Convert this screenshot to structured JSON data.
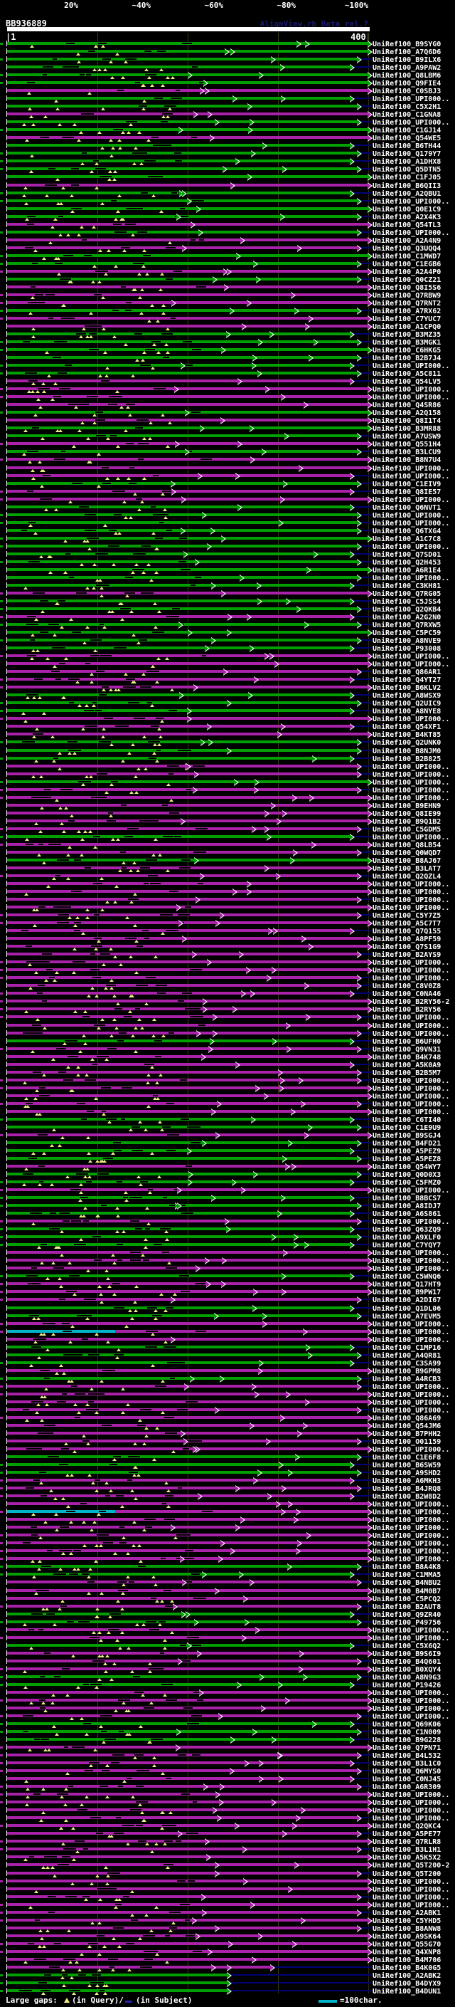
{
  "chart_data": {
    "type": "bar",
    "orientation": "horizontal",
    "title": "BB936889",
    "watermark": "AlignView.rb Beta rel.7",
    "identity_scale": {
      "labels": [
        "20%",
        "~40%",
        "~60%",
        "~80%",
        "~100%"
      ],
      "colors": [
        "#ee1126",
        "#dd7700",
        "#952a9c",
        "#00a000",
        "#00b5c9"
      ]
    },
    "xaxis": {
      "min": 1,
      "max": 400,
      "start_label": "|1",
      "end_label": "400|",
      "gridlines": [
        100,
        200,
        300,
        400
      ],
      "grid_on": true
    },
    "palette": {
      "green": "#00a000",
      "purple": "#aa22aa",
      "cyan": "#00b5c9",
      "connector": "#000077",
      "gap_query": "#eeee88",
      "gridline": "#3b3b08"
    },
    "legend": {
      "prefix": "Large gaps:",
      "query_gap_symbol": "▲",
      "query_gap_label": "(in Query)/",
      "subject_gap_symbol": "-",
      "subject_gap_label": "(in Subject)",
      "scale_label": "=100char."
    },
    "rows": [
      [
        "UniRef100_B9SYG0",
        "g",
        1
      ],
      [
        "UniRef100_A7Q6D6",
        "g",
        1
      ],
      [
        "UniRef100_B9ILX6",
        "g",
        0.97
      ],
      [
        "UniRef100_A9PAW2",
        "g",
        0.95
      ],
      [
        "UniRef100_Q8LBM6",
        "g",
        1
      ],
      [
        "UniRef100_Q9FIE4",
        "g",
        1
      ],
      [
        "UniRef100_C0SBJ3",
        "p",
        1
      ],
      [
        "UniRef100_UPI000..",
        "g",
        0.95
      ],
      [
        "UniRef100_C5X2H1",
        "g",
        0.97
      ],
      [
        "UniRef100_C1GNA8",
        "p",
        1
      ],
      [
        "UniRef100_UPI000..",
        "g",
        0.97
      ],
      [
        "UniRef100_C1GJ14",
        "g",
        1
      ],
      [
        "UniRef100_Q54WE5",
        "p",
        1
      ],
      [
        "UniRef100_B6TH44",
        "g",
        0.95
      ],
      [
        "UniRef100_Q179Y7",
        "g",
        0.97
      ],
      [
        "UniRef100_A1DHX8",
        "g",
        0.95
      ],
      [
        "UniRef100_Q5DTN5",
        "g",
        0.97
      ],
      [
        "UniRef100_C1FJ05",
        "g",
        1
      ],
      [
        "UniRef100_B6QII3",
        "p",
        1
      ],
      [
        "UniRef100_A2QBU1",
        "g",
        0.95
      ],
      [
        "UniRef100_UPI000..",
        "g",
        0.97
      ],
      [
        "UniRef100_Q0E1C9",
        "g",
        1
      ],
      [
        "UniRef100_A2X4K3",
        "g",
        0.97
      ],
      [
        "UniRef100_Q54TL3",
        "p",
        1
      ],
      [
        "UniRef100_UPI000..",
        "g",
        0.97
      ],
      [
        "UniRef100_A2A4N9",
        "p",
        1
      ],
      [
        "UniRef100_Q3UQQ4",
        "p",
        0.97
      ],
      [
        "UniRef100_C1MWD7",
        "g",
        1
      ],
      [
        "UniRef100_C1EGB6",
        "g",
        0.97
      ],
      [
        "UniRef100_A2A4P0",
        "p",
        1
      ],
      [
        "UniRef100_Q0CZ21",
        "g",
        0.97
      ],
      [
        "UniRef100_Q8I5S6",
        "p",
        1
      ],
      [
        "UniRef100_Q7RBW9",
        "p",
        1
      ],
      [
        "UniRef100_Q7RNT2",
        "p",
        1
      ],
      [
        "UniRef100_A7RX62",
        "g",
        0.97
      ],
      [
        "UniRef100_C7YUC7",
        "p",
        1
      ],
      [
        "UniRef100_A1CPQ0",
        "p",
        1
      ],
      [
        "UniRef100_B3MZ35",
        "g",
        0.95
      ],
      [
        "UniRef100_B3MGK1",
        "g",
        0.97
      ],
      [
        "UniRef100_C6HKG5",
        "g",
        1
      ],
      [
        "UniRef100_B2B7J4",
        "g",
        0.97
      ],
      [
        "UniRef100_UPI000..",
        "g",
        0.95
      ],
      [
        "UniRef100_A5C811",
        "g",
        0.97
      ],
      [
        "UniRef100_Q54LV5",
        "p",
        0.95
      ],
      [
        "UniRef100_UPI000..",
        "p",
        1
      ],
      [
        "UniRef100_UPI000..",
        "p",
        1
      ],
      [
        "UniRef100_Q4SR86",
        "p",
        1
      ],
      [
        "UniRef100_A2Q158",
        "g",
        1
      ],
      [
        "UniRef100_Q8I1T4",
        "p",
        1
      ],
      [
        "UniRef100_B3MR88",
        "g",
        1
      ],
      [
        "UniRef100_A7USW9",
        "g",
        0.97
      ],
      [
        "UniRef100_Q551H4",
        "p",
        1
      ],
      [
        "UniRef100_B3LCU9",
        "g",
        0.97
      ],
      [
        "UniRef100_B8N7U4",
        "p",
        1
      ],
      [
        "UniRef100_UPI000..",
        "p",
        1
      ],
      [
        "UniRef100_UPI000..",
        "p",
        0.95
      ],
      [
        "UniRef100_C1EIV9",
        "g",
        0.97
      ],
      [
        "UniRef100_Q8IE57",
        "p",
        0.95
      ],
      [
        "UniRef100_UPI000..",
        "p",
        1
      ],
      [
        "UniRef100_Q6NVT1",
        "g",
        0.95
      ],
      [
        "UniRef100_UPI000..",
        "g",
        0.97
      ],
      [
        "UniRef100_UPI000..",
        "g",
        0.97
      ],
      [
        "UniRef100_Q6TXG4",
        "g",
        0.97
      ],
      [
        "UniRef100_A1C7C8",
        "g",
        1
      ],
      [
        "UniRef100_UPI000..",
        "g",
        0.97
      ],
      [
        "UniRef100_Q7SD01",
        "g",
        0.95
      ],
      [
        "UniRef100_Q2H453",
        "g",
        0.97
      ],
      [
        "UniRef100_A6R1E4",
        "g",
        1
      ],
      [
        "UniRef100_UPI000..",
        "g",
        0.97
      ],
      [
        "UniRef100_C3KH81",
        "g",
        0.95
      ],
      [
        "UniRef100_Q7RG05",
        "p",
        1
      ],
      [
        "UniRef100_C5JSS4",
        "g",
        0.95
      ],
      [
        "UniRef100_Q2QKB4",
        "g",
        0.97
      ],
      [
        "UniRef100_A2G2N0",
        "p",
        0.95
      ],
      [
        "UniRef100_Q7RXW5",
        "g",
        0.97
      ],
      [
        "UniRef100_C5PC59",
        "g",
        1
      ],
      [
        "UniRef100_A8NVE9",
        "g",
        0.97
      ],
      [
        "UniRef100_P93008",
        "g",
        0.95
      ],
      [
        "UniRef100_UPI000..",
        "p",
        1
      ],
      [
        "UniRef100_UPI000..",
        "p",
        1
      ],
      [
        "UniRef100_Q86AR1",
        "p",
        0.97
      ],
      [
        "UniRef100_Q4YT27",
        "p",
        0.95
      ],
      [
        "UniRef100_B6KLV2",
        "p",
        1
      ],
      [
        "UniRef100_A8WSX9",
        "g",
        0.95
      ],
      [
        "UniRef100_Q2UIC9",
        "g",
        0.97
      ],
      [
        "UniRef100_A8NYE8",
        "g",
        0.95
      ],
      [
        "UniRef100_UPI000..",
        "p",
        1
      ],
      [
        "UniRef100_Q54XF1",
        "p",
        0.95
      ],
      [
        "UniRef100_B4KT85",
        "p",
        1
      ],
      [
        "UniRef100_Q2UNK0",
        "g",
        0.97
      ],
      [
        "UniRef100_B8NJM0",
        "g",
        0.97
      ],
      [
        "UniRef100_B2B825",
        "g",
        0.95
      ],
      [
        "UniRef100_UPI000..",
        "p",
        0.97
      ],
      [
        "UniRef100_UPI000..",
        "p",
        0.97
      ],
      [
        "UniRef100_UPI000..",
        "g",
        1
      ],
      [
        "UniRef100_UPI000..",
        "p",
        0.97
      ],
      [
        "UniRef100_UPI000..",
        "p",
        1
      ],
      [
        "UniRef100_B9EHN9",
        "p",
        1
      ],
      [
        "UniRef100_Q8IE99",
        "p",
        1
      ],
      [
        "UniRef100_B9Q1B2",
        "p",
        1
      ],
      [
        "UniRef100_C5GDM5",
        "p",
        0.97
      ],
      [
        "UniRef100_UPI000..",
        "g",
        0.95
      ],
      [
        "UniRef100_Q8LB54",
        "p",
        1
      ],
      [
        "UniRef100_Q0WQD7",
        "p",
        0.97
      ],
      [
        "UniRef100_B8AJ67",
        "g",
        1
      ],
      [
        "UniRef100_B3LAT7",
        "p",
        1
      ],
      [
        "UniRef100_Q2QZL4",
        "p",
        0.97
      ],
      [
        "UniRef100_UPI000..",
        "p",
        1
      ],
      [
        "UniRef100_UPI000..",
        "p",
        1
      ],
      [
        "UniRef100_UPI000..",
        "p",
        0.97
      ],
      [
        "UniRef100_UPI000..",
        "p",
        1
      ],
      [
        "UniRef100_C5Y7Z5",
        "p",
        0.97
      ],
      [
        "UniRef100_A5C7T7",
        "p",
        1
      ],
      [
        "UniRef100_Q7Q155",
        "p",
        0.95
      ],
      [
        "UniRef100_A8PF59",
        "p",
        1
      ],
      [
        "UniRef100_Q7S1G9",
        "p",
        1
      ],
      [
        "UniRef100_B2AYS9",
        "p",
        0.97
      ],
      [
        "UniRef100_UPI000..",
        "p",
        1
      ],
      [
        "UniRef100_UPI000..",
        "p",
        1
      ],
      [
        "UniRef100_UPI000..",
        "p",
        0.97
      ],
      [
        "UniRef100_C8V0Z8",
        "p",
        0.97
      ],
      [
        "UniRef100_C0NA46",
        "p",
        0.95
      ],
      [
        "UniRef100_B2RY56-2",
        "p",
        1
      ],
      [
        "UniRef100_B2RY56",
        "p",
        1
      ],
      [
        "UniRef100_UPI000..",
        "p",
        0.97
      ],
      [
        "UniRef100_UPI000..",
        "p",
        1
      ],
      [
        "UniRef100_UPI000..",
        "p",
        0.97
      ],
      [
        "UniRef100_B6UFH0",
        "g",
        0.95
      ],
      [
        "UniRef100_Q9VN31",
        "p",
        0.97
      ],
      [
        "UniRef100_B4K748",
        "p",
        1
      ],
      [
        "UniRef100_A5K0A9",
        "p",
        0.95
      ],
      [
        "UniRef100_B2B5M7",
        "p",
        0.97
      ],
      [
        "UniRef100_UPI000..",
        "p",
        0.97
      ],
      [
        "UniRef100_UPI000..",
        "p",
        1
      ],
      [
        "UniRef100_UPI000..",
        "p",
        1
      ],
      [
        "UniRef100_UPI000..",
        "p",
        0.97
      ],
      [
        "UniRef100_UPI000..",
        "p",
        1
      ],
      [
        "UniRef100_C6TI40",
        "g",
        0.95
      ],
      [
        "UniRef100_C1E9U9",
        "g",
        0.97
      ],
      [
        "UniRef100_B9SGJ4",
        "p",
        1
      ],
      [
        "UniRef100_B4FD21",
        "g",
        0.97
      ],
      [
        "UniRef100_A5PEZ9",
        "g",
        0.95
      ],
      [
        "UniRef100_A5PEZ8",
        "g",
        0.97
      ],
      [
        "UniRef100_Q54WY7",
        "p",
        1
      ],
      [
        "UniRef100_Q0D0X3",
        "g",
        0.97
      ],
      [
        "UniRef100_C5FMZ0",
        "g",
        0.95
      ],
      [
        "UniRef100_UPI000..",
        "p",
        1
      ],
      [
        "UniRef100_B8BCS7",
        "g",
        0.95
      ],
      [
        "UniRef100_A8IDJ7",
        "g",
        0.97
      ],
      [
        "UniRef100_A6S861",
        "g",
        0.95
      ],
      [
        "UniRef100_UPI000..",
        "p",
        0.97
      ],
      [
        "UniRef100_Q63ZQ9",
        "g",
        0.95
      ],
      [
        "UniRef100_A9XLF0",
        "g",
        0.97
      ],
      [
        "UniRef100_C7YQY7",
        "g",
        0.95
      ],
      [
        "UniRef100_UPI000..",
        "p",
        1
      ],
      [
        "UniRef100_UPI000..",
        "p",
        1
      ],
      [
        "UniRef100_UPI000..",
        "p",
        1
      ],
      [
        "UniRef100_C5WNQ6",
        "g",
        0.95
      ],
      [
        "UniRef100_Q17HT9",
        "p",
        1
      ],
      [
        "UniRef100_B9PW17",
        "p",
        1
      ],
      [
        "UniRef100_A2DI67",
        "p",
        0.97
      ],
      [
        "UniRef100_Q1DL06",
        "g",
        0.95
      ],
      [
        "UniRef100_A7EVM5",
        "g",
        0.97
      ],
      [
        "UniRef100_UPI000..",
        "p",
        1
      ],
      [
        "UniRef100_UPI000..",
        "c",
        1
      ],
      [
        "UniRef100_UPI000..",
        "p",
        1
      ],
      [
        "UniRef100_C1MP16",
        "g",
        0.95
      ],
      [
        "UniRef100_A4QR81",
        "g",
        0.97
      ],
      [
        "UniRef100_C3SA99",
        "g",
        0.95
      ],
      [
        "UniRef100_B9GPM8",
        "p",
        1
      ],
      [
        "UniRef100_A4RCB3",
        "g",
        0.97
      ],
      [
        "UniRef100_UPI000..",
        "p",
        0.97
      ],
      [
        "UniRef100_UPI000..",
        "p",
        1
      ],
      [
        "UniRef100_UPI000..",
        "p",
        1
      ],
      [
        "UniRef100_UPI000..",
        "p",
        0.97
      ],
      [
        "UniRef100_Q86A69",
        "p",
        1
      ],
      [
        "UniRef100_Q54JM6",
        "p",
        1
      ],
      [
        "UniRef100_B7PHH2",
        "p",
        1
      ],
      [
        "UniRef100_O01159",
        "p",
        0.97
      ],
      [
        "UniRef100_UPI000..",
        "p",
        1
      ],
      [
        "UniRef100_C1E6F8",
        "g",
        0.97
      ],
      [
        "UniRef100_B6SW59",
        "g",
        0.95
      ],
      [
        "UniRef100_A9SHD2",
        "g",
        0.97
      ],
      [
        "UniRef100_A6MKH3",
        "p",
        0.95
      ],
      [
        "UniRef100_B4JRQ8",
        "p",
        0.97
      ],
      [
        "UniRef100_B2W8D2",
        "p",
        0.95
      ],
      [
        "UniRef100_UPI000..",
        "p",
        1
      ],
      [
        "UniRef100_UPI000..",
        "c",
        1
      ],
      [
        "UniRef100_UPI000..",
        "p",
        1
      ],
      [
        "UniRef100_UPI000..",
        "p",
        1
      ],
      [
        "UniRef100_UPI000..",
        "p",
        1
      ],
      [
        "UniRef100_UPI000..",
        "p",
        1
      ],
      [
        "UniRef100_UPI000..",
        "p",
        1
      ],
      [
        "UniRef100_UPI000..",
        "p",
        1
      ],
      [
        "UniRef100_B8A4K8",
        "g",
        0.97
      ],
      [
        "UniRef100_C1MMA5",
        "g",
        0.95
      ],
      [
        "UniRef100_B4NBU2",
        "p",
        0.97
      ],
      [
        "UniRef100_B4M0B7",
        "p",
        1
      ],
      [
        "UniRef100_C5PCQ2",
        "p",
        1
      ],
      [
        "UniRef100_B2AUT8",
        "p",
        0.97
      ],
      [
        "UniRef100_Q9ZR40",
        "g",
        0.95
      ],
      [
        "UniRef100_P49756",
        "g",
        0.97
      ],
      [
        "UniRef100_UPI000..",
        "p",
        1
      ],
      [
        "UniRef100_UPI000..",
        "p",
        1
      ],
      [
        "UniRef100_C5X6Q2",
        "g",
        0.95
      ],
      [
        "UniRef100_B9S6I9",
        "p",
        1
      ],
      [
        "UniRef100_B4Q601",
        "p",
        0.97
      ],
      [
        "UniRef100_B0XQY4",
        "p",
        1
      ],
      [
        "UniRef100_A8N9G3",
        "g",
        0.97
      ],
      [
        "UniRef100_P19426",
        "g",
        0.95
      ],
      [
        "UniRef100_UPI000..",
        "p",
        1
      ],
      [
        "UniRef100_UPI000..",
        "p",
        1
      ],
      [
        "UniRef100_UPI000..",
        "p",
        1
      ],
      [
        "UniRef100_UPI000..",
        "p",
        0.97
      ],
      [
        "UniRef100_Q69K06",
        "g",
        0.95
      ],
      [
        "UniRef100_C1N009",
        "g",
        0.97
      ],
      [
        "UniRef100_B9G228",
        "g",
        0.95
      ],
      [
        "UniRef100_Q7PN71",
        "p",
        1
      ],
      [
        "UniRef100_B4L532",
        "p",
        0.97
      ],
      [
        "UniRef100_B3L1C0",
        "p",
        0.95
      ],
      [
        "UniRef100_Q6MYS0",
        "p",
        0.97
      ],
      [
        "UniRef100_C0NJ45",
        "p",
        0.95
      ],
      [
        "UniRef100_A6R309",
        "p",
        0.97
      ],
      [
        "UniRef100_UPI000..",
        "p",
        1
      ],
      [
        "UniRef100_UPI000..",
        "p",
        1
      ],
      [
        "UniRef100_UPI000..",
        "p",
        1
      ],
      [
        "UniRef100_UPI000..",
        "p",
        0.97
      ],
      [
        "UniRef100_Q2QKC4",
        "p",
        1
      ],
      [
        "UniRef100_A5PE77",
        "p",
        0.97
      ],
      [
        "UniRef100_Q7RLR8",
        "p",
        1
      ],
      [
        "UniRef100_B3L1H1",
        "p",
        0.97
      ],
      [
        "UniRef100_A5K5X2",
        "p",
        1
      ],
      [
        "UniRef100_Q5T200-2",
        "p",
        1
      ],
      [
        "UniRef100_Q5T200",
        "p",
        0.97
      ],
      [
        "UniRef100_UPI000..",
        "p",
        1
      ],
      [
        "UniRef100_UPI000..",
        "p",
        1
      ],
      [
        "UniRef100_UPI000..",
        "p",
        0.97
      ],
      [
        "UniRef100_UPI000..",
        "p",
        1
      ],
      [
        "UniRef100_A2ABK1",
        "p",
        0.97
      ],
      [
        "UniRef100_C5YHD5",
        "p",
        1
      ],
      [
        "UniRef100_B8ANW8",
        "p",
        0.97
      ],
      [
        "UniRef100_A9SK64",
        "p",
        1
      ],
      [
        "UniRef100_Q55G70",
        "p",
        1
      ],
      [
        "UniRef100_Q4XNP8",
        "p",
        1
      ],
      [
        "UniRef100_B4M706",
        "p",
        1
      ],
      [
        "UniRef100_B4K0G5",
        "p",
        0.73
      ],
      [
        "UniRef100_A2ABK2",
        "g",
        0.61
      ],
      [
        "UniRef100_B4DYX9",
        "g",
        0.61
      ],
      [
        "UniRef100_B4DUN1",
        "g",
        0.61
      ]
    ]
  }
}
